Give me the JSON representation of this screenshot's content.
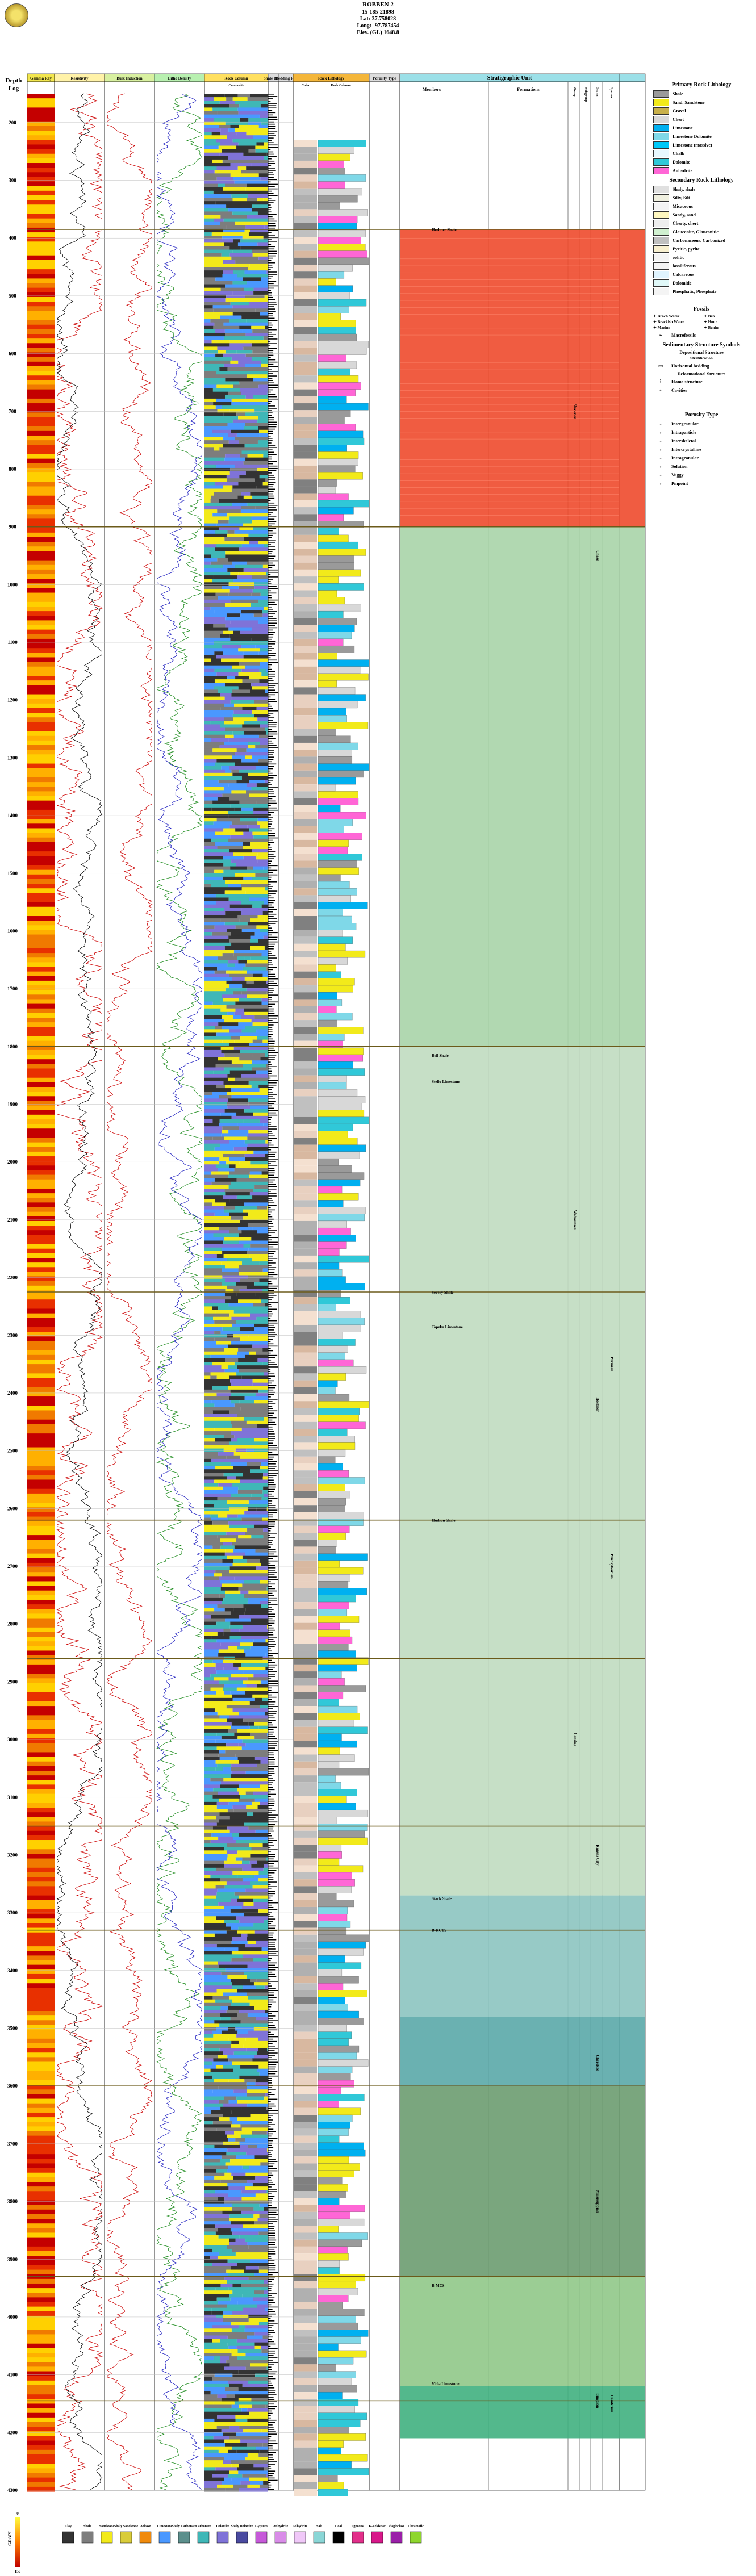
{
  "header": {
    "well_name": "ROBBEN 2",
    "api": "15-185-21898",
    "lat": "Lat: 37.758028",
    "long": "Long: -97.787454",
    "elev": "Elev. (GL) 1648.8"
  },
  "depth_axis": {
    "label_line1": "Depth",
    "label_line2": "Log",
    "min": 150,
    "max": 4300,
    "ticks": [
      200,
      300,
      400,
      500,
      600,
      700,
      800,
      900,
      1000,
      1100,
      1200,
      1300,
      1400,
      1500,
      1600,
      1700,
      1800,
      1900,
      2000,
      2100,
      2200,
      2300,
      2400,
      2500,
      2600,
      2700,
      2800,
      2900,
      3000,
      3100,
      3200,
      3300,
      3400,
      3500,
      3600,
      3700,
      3800,
      3900,
      4000,
      4100,
      4200,
      4300
    ]
  },
  "track_headers": {
    "gamma": "Gamma Ray",
    "resistivity": "Resistivity",
    "bulk_density": "Bulk Induction",
    "lithodensity": "Litho Density",
    "rock_column": "Rock Column",
    "shale_ratio": "Shale Ratio",
    "bedding": "Bedding Rx",
    "rock_column_sub": "Composite",
    "lith_track_title": "Rock Lithology",
    "lith_color": "Color",
    "lith_column": "Rock Column",
    "porosity": "Porosity Type",
    "strat_title": "Stratigraphic Unit",
    "members": "Members",
    "formations": "Formations",
    "groups": "Group",
    "subgroup": "Subgroup",
    "series": "Series",
    "system": "System"
  },
  "strat_units": {
    "members": [
      {
        "name": "Heebner Shale",
        "depth": 385
      },
      {
        "name": "Beil Shale",
        "depth": 1815
      },
      {
        "name": "Stello Limestone",
        "depth": 1860
      },
      {
        "name": "Severy Shale",
        "depth": 2225
      },
      {
        "name": "Topeka Limestone",
        "depth": 2285
      },
      {
        "name": "Hudson Shale",
        "depth": 2620
      },
      {
        "name": "Stark Shale",
        "depth": 3275
      },
      {
        "name": "B-KCTS",
        "depth": 3330
      },
      {
        "name": "B-MCS",
        "depth": 3945
      },
      {
        "name": "Viola Limestone",
        "depth": 4115
      }
    ],
    "groups": [
      {
        "name": "Shawnee",
        "depth": 700
      },
      {
        "name": "Wabaunsee",
        "depth": 2100
      },
      {
        "name": "Lansing",
        "depth": 3000
      }
    ],
    "series": [
      {
        "name": "Chase",
        "depth": 950
      },
      {
        "name": "Heebner",
        "depth": 2420
      },
      {
        "name": "Kansas City",
        "depth": 3200
      },
      {
        "name": "Cherokee",
        "depth": 3560
      },
      {
        "name": "Mississippian",
        "depth": 3800
      },
      {
        "name": "Simpson",
        "depth": 4145
      }
    ],
    "system": [
      {
        "name": "Permian",
        "depth": 2350
      },
      {
        "name": "Pennsylvanian",
        "depth": 2700
      },
      {
        "name": "Cambrian",
        "depth": 4150
      }
    ]
  },
  "bottom_legend": {
    "scale_title": "GRAPI",
    "scale_min": "0",
    "scale_max": "150",
    "items": [
      {
        "label": "Clay",
        "color": "#333333"
      },
      {
        "label": "Shale",
        "color": "#7d7d7d"
      },
      {
        "label": "Sandstone",
        "color": "#f2ea1a"
      },
      {
        "label": "Shaly Sandstone",
        "color": "#d9cc3a"
      },
      {
        "label": "Arkose",
        "color": "#f08a0c"
      },
      {
        "label": "Limestone",
        "color": "#4a98ff"
      },
      {
        "label": "Shaly Carbonate",
        "color": "#5c8f8c"
      },
      {
        "label": "Carbonate",
        "color": "#3fb7b7"
      },
      {
        "label": "Dolomite",
        "color": "#7f73d8"
      },
      {
        "label": "Shaly Dolomite",
        "color": "#4a4aa0"
      },
      {
        "label": "Gypsum",
        "color": "#c659d9"
      },
      {
        "label": "Anhydrite",
        "color": "#d98ce8"
      },
      {
        "label": "Anhydrite",
        "color": "#f0c8f8"
      },
      {
        "label": "Salt",
        "color": "#8ad6d6"
      },
      {
        "label": "Coal",
        "color": "#000000"
      },
      {
        "label": "Igneous",
        "color": "#e22f8a"
      },
      {
        "label": "K-Feldspar",
        "color": "#d8188a"
      },
      {
        "label": "Plagioclase",
        "color": "#9a1fa8"
      },
      {
        "label": "Ultramafic",
        "color": "#8ed62d"
      }
    ]
  },
  "legend": {
    "primary": {
      "title": "Primary Rock Lithology",
      "items": [
        {
          "label": "Shale",
          "color": "#9a9a9a"
        },
        {
          "label": "Sand, Sandstone",
          "color": "#f2ea1a"
        },
        {
          "label": "Gravel",
          "color": "#c8b04a"
        },
        {
          "label": "Chert",
          "color": "#d8d8d8"
        },
        {
          "label": "Limestone",
          "color": "#00b0f0"
        },
        {
          "label": "Limestone Dolomite",
          "color": "#7fd8e8"
        },
        {
          "label": "Limestone (massive)",
          "color": "#00c8f8"
        },
        {
          "label": "Chalk",
          "color": "#e8f8ff"
        },
        {
          "label": "Dolomite",
          "color": "#30c8d8"
        },
        {
          "label": "Anhydrite",
          "color": "#ff66d6"
        }
      ]
    },
    "secondary": {
      "title": "Secondary Rock Lithology",
      "items": [
        {
          "label": "Shaly, shale",
          "color": "#e0e0e0"
        },
        {
          "label": "Silty, Silt",
          "color": "#f0f0e0"
        },
        {
          "label": "Micaceous",
          "color": "#f4f4f4"
        },
        {
          "label": "Sandy, sand",
          "color": "#fff8c0"
        },
        {
          "label": "Cherty, chert",
          "color": "#eeeeee"
        },
        {
          "label": "Glauconite, Glauconitic",
          "color": "#d0f0d0"
        },
        {
          "label": "Carbonaceous, Carbonized",
          "color": "#c0c0c0"
        },
        {
          "label": "Pyritic, pyrite",
          "color": "#f8f0d0"
        },
        {
          "label": "oolitic",
          "color": "#f4f4f4"
        },
        {
          "label": "fossiliferous",
          "color": "#f4f4f4"
        },
        {
          "label": "Calcareous",
          "color": "#e0f4ff"
        },
        {
          "label": "Dolomitic",
          "color": "#e0f8f8"
        },
        {
          "label": "Phosphatic, Phosphate",
          "color": "#f4f4f4"
        }
      ]
    },
    "fossils": {
      "title": "Fossils",
      "items": [
        "Brach Water",
        "Ben",
        "Brackish Water",
        "Hour",
        "Marine",
        "Benim"
      ],
      "extra": "Macrofossils"
    },
    "structures": {
      "title": "Sedimentary Structure Symbols",
      "depositional": "Depositional Structure",
      "strat": "Stratification",
      "items": [
        "Horizontal bedding"
      ],
      "deformational": "Deformational Structure",
      "deform_items": [
        "Flame structure",
        "Cavities"
      ]
    },
    "porosity": {
      "title": "Porosity Type",
      "items": [
        "Intergranular",
        "Intraparticle",
        "Interskeletal",
        "Intercrystalline",
        "Intragranular",
        "Solution",
        "Vuggy",
        "Pinpoint"
      ]
    }
  }
}
